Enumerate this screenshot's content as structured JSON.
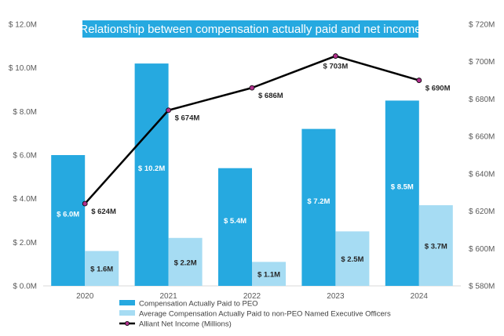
{
  "chart_data": {
    "type": "bar",
    "title": "Relationship between compensation actually paid and net income",
    "categories": [
      "2020",
      "2021",
      "2022",
      "2023",
      "2024"
    ],
    "series": [
      {
        "name": "Compensation Actually Paid to PEO",
        "kind": "bar",
        "axis": "left",
        "color": "#26a9e0",
        "label_color": "#ffffff",
        "values": [
          6.0,
          10.2,
          5.4,
          7.2,
          8.5
        ],
        "labels": [
          "$ 6.0M",
          "$ 10.2M",
          "$ 5.4M",
          "$ 7.2M",
          "$ 8.5M"
        ]
      },
      {
        "name": "Average Compensation Actually Paid to non-PEO Named Executive Officers",
        "kind": "bar",
        "axis": "left",
        "color": "#a6dcf3",
        "label_color": "#262626",
        "values": [
          1.6,
          2.2,
          1.1,
          2.5,
          3.7
        ],
        "labels": [
          "$ 1.6M",
          "$ 2.2M",
          "$ 1.1M",
          "$ 2.5M",
          "$ 3.7M"
        ]
      },
      {
        "name": "Alliant Net Income (Millions)",
        "kind": "line",
        "axis": "right",
        "color": "#000000",
        "marker_color": "#b0308c",
        "values": [
          624,
          674,
          686,
          703,
          690
        ],
        "labels": [
          "$ 624M",
          "$ 674M",
          "$ 686M",
          "$ 703M",
          "$ 690M"
        ]
      }
    ],
    "y_left": {
      "ylim": [
        0,
        12
      ],
      "ticks": [
        0,
        2,
        4,
        6,
        8,
        10,
        12
      ],
      "tick_labels": [
        "$ 0.0M",
        "$ 2.0M",
        "$ 4.0M",
        "$ 6.0M",
        "$ 8.0M",
        "$ 10.0M",
        "$ 12.0M"
      ]
    },
    "y_right": {
      "ylim": [
        580,
        720
      ],
      "ticks": [
        580,
        600,
        620,
        640,
        660,
        680,
        700,
        720
      ],
      "tick_labels": [
        "$ 580M",
        "$ 600M",
        "$ 620M",
        "$ 640M",
        "$ 660M",
        "$ 680M",
        "$ 700M",
        "$ 720M"
      ]
    },
    "xlabel": "",
    "ylabel": "",
    "grid": false,
    "legend_position": "bottom",
    "title_background": "#26a9e0"
  }
}
